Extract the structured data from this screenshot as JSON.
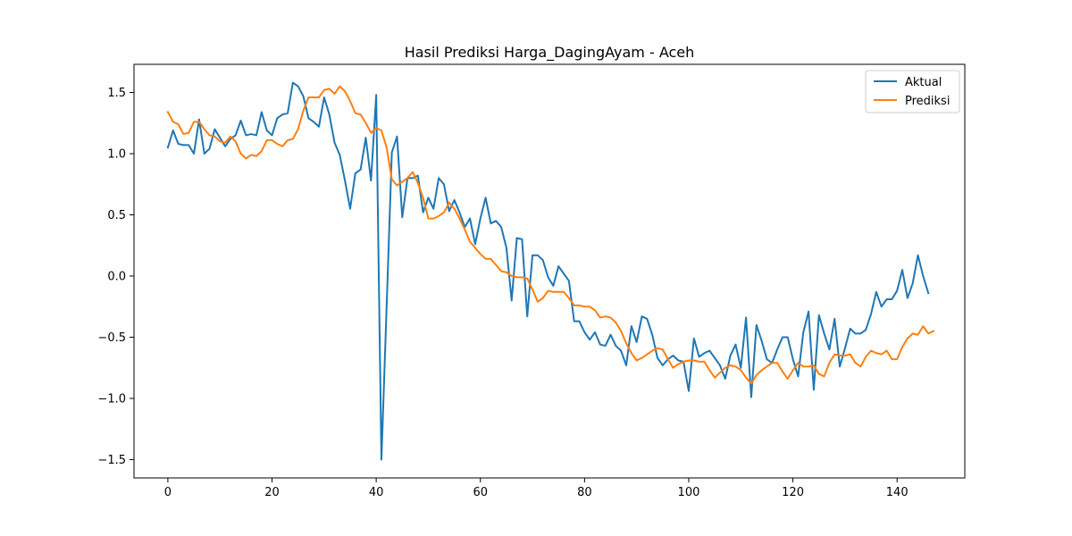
{
  "colors": {
    "actual": "#1f77b4",
    "predicted": "#ff7f0e"
  },
  "chart_data": {
    "type": "line",
    "title": "Hasil Prediksi Harga_DagingAyam - Aceh",
    "xlabel": "",
    "ylabel": "",
    "xlim": [
      -6.5,
      153
    ],
    "ylim": [
      -1.65,
      1.73
    ],
    "xticks": [
      0,
      20,
      40,
      60,
      80,
      100,
      120,
      140
    ],
    "yticks": [
      -1.5,
      -1.0,
      -0.5,
      0.0,
      0.5,
      1.0,
      1.5
    ],
    "ytick_labels": [
      "−1.5",
      "−1.0",
      "−0.5",
      "0.0",
      "0.5",
      "1.0",
      "1.5"
    ],
    "grid": false,
    "legend_position": "top-right",
    "series": [
      {
        "name": "Aktual",
        "color": "#1f77b4",
        "values": [
          1.05,
          1.19,
          1.08,
          1.07,
          1.07,
          1.0,
          1.28,
          1.0,
          1.04,
          1.2,
          1.13,
          1.06,
          1.12,
          1.15,
          1.27,
          1.15,
          1.16,
          1.15,
          1.34,
          1.19,
          1.15,
          1.29,
          1.32,
          1.33,
          1.58,
          1.55,
          1.47,
          1.29,
          1.26,
          1.22,
          1.46,
          1.32,
          1.09,
          0.99,
          0.78,
          0.55,
          0.84,
          0.87,
          1.13,
          0.78,
          1.48,
          -1.5,
          -0.25,
          1.01,
          1.14,
          0.48,
          0.8,
          0.8,
          0.82,
          0.52,
          0.64,
          0.55,
          0.8,
          0.75,
          0.53,
          0.62,
          0.52,
          0.4,
          0.47,
          0.26,
          0.47,
          0.64,
          0.43,
          0.45,
          0.4,
          0.23,
          -0.2,
          0.31,
          0.3,
          -0.33,
          0.17,
          0.17,
          0.13,
          -0.01,
          -0.08,
          0.08,
          0.02,
          -0.04,
          -0.37,
          -0.37,
          -0.46,
          -0.52,
          -0.46,
          -0.56,
          -0.57,
          -0.48,
          -0.57,
          -0.61,
          -0.73,
          -0.41,
          -0.54,
          -0.33,
          -0.35,
          -0.48,
          -0.67,
          -0.73,
          -0.68,
          -0.65,
          -0.69,
          -0.7,
          -0.94,
          -0.51,
          -0.66,
          -0.63,
          -0.61,
          -0.67,
          -0.73,
          -0.84,
          -0.65,
          -0.56,
          -0.75,
          -0.34,
          -0.99,
          -0.4,
          -0.53,
          -0.68,
          -0.71,
          -0.6,
          -0.5,
          -0.5,
          -0.68,
          -0.82,
          -0.46,
          -0.29,
          -0.93,
          -0.32,
          -0.47,
          -0.6,
          -0.35,
          -0.74,
          -0.59,
          -0.43,
          -0.47,
          -0.47,
          -0.44,
          -0.31,
          -0.13,
          -0.25,
          -0.19,
          -0.19,
          -0.12,
          0.05,
          -0.18,
          -0.06,
          0.17,
          0.0,
          -0.14
        ]
      },
      {
        "name": "Prediksi",
        "color": "#ff7f0e",
        "values": [
          1.34,
          1.26,
          1.24,
          1.16,
          1.17,
          1.26,
          1.26,
          1.2,
          1.15,
          1.14,
          1.1,
          1.09,
          1.14,
          1.1,
          1.0,
          0.96,
          0.99,
          0.98,
          1.02,
          1.11,
          1.11,
          1.08,
          1.06,
          1.11,
          1.12,
          1.2,
          1.35,
          1.46,
          1.46,
          1.46,
          1.52,
          1.53,
          1.49,
          1.55,
          1.51,
          1.43,
          1.33,
          1.32,
          1.25,
          1.17,
          1.21,
          1.19,
          1.05,
          0.79,
          0.74,
          0.77,
          0.8,
          0.85,
          0.76,
          0.64,
          0.47,
          0.47,
          0.49,
          0.52,
          0.6,
          0.55,
          0.47,
          0.38,
          0.28,
          0.23,
          0.18,
          0.14,
          0.14,
          0.09,
          0.04,
          0.03,
          0.0,
          -0.01,
          -0.01,
          -0.02,
          -0.11,
          -0.21,
          -0.18,
          -0.12,
          -0.13,
          -0.13,
          -0.13,
          -0.18,
          -0.24,
          -0.24,
          -0.25,
          -0.25,
          -0.28,
          -0.34,
          -0.33,
          -0.34,
          -0.38,
          -0.45,
          -0.55,
          -0.63,
          -0.69,
          -0.67,
          -0.64,
          -0.61,
          -0.59,
          -0.6,
          -0.68,
          -0.75,
          -0.72,
          -0.7,
          -0.69,
          -0.69,
          -0.7,
          -0.7,
          -0.77,
          -0.83,
          -0.79,
          -0.75,
          -0.73,
          -0.74,
          -0.77,
          -0.83,
          -0.88,
          -0.81,
          -0.77,
          -0.74,
          -0.71,
          -0.71,
          -0.78,
          -0.84,
          -0.77,
          -0.71,
          -0.74,
          -0.74,
          -0.73,
          -0.8,
          -0.82,
          -0.71,
          -0.64,
          -0.65,
          -0.65,
          -0.64,
          -0.71,
          -0.74,
          -0.66,
          -0.61,
          -0.63,
          -0.64,
          -0.61,
          -0.68,
          -0.68,
          -0.58,
          -0.51,
          -0.47,
          -0.48,
          -0.41,
          -0.47,
          -0.45
        ]
      }
    ]
  }
}
